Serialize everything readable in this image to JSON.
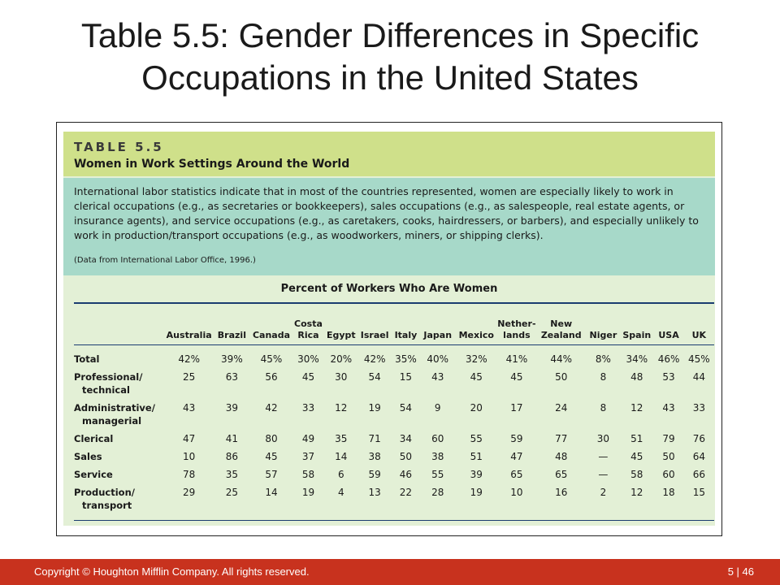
{
  "slide": {
    "title_line1": "Table 5.5: Gender Differences in Specific",
    "title_line2": "Occupations in the United States"
  },
  "table": {
    "label": "TABLE 5.5",
    "heading": "Women in Work Settings Around the World",
    "description": "International labor statistics indicate that in most of the countries represented, women are especially likely to work in clerical occupations (e.g., as secretaries or bookkeepers), sales occupations (e.g., as salespeople, real estate agents, or insurance agents), and service occupations (e.g., as caretakers, cooks, hairdressers, or barbers), and especially unlikely to work in production/transport occupations (e.g., as woodworkers, miners, or shipping clerks).",
    "source": "(Data from International Labor Office, 1996.)",
    "percent_heading": "Percent of Workers Who Are Women",
    "columns": [
      [
        "",
        "Australia"
      ],
      [
        "",
        "Brazil"
      ],
      [
        "",
        "Canada"
      ],
      [
        "Costa",
        "Rica"
      ],
      [
        "",
        "Egypt"
      ],
      [
        "",
        "Israel"
      ],
      [
        "",
        "Italy"
      ],
      [
        "",
        "Japan"
      ],
      [
        "",
        "Mexico"
      ],
      [
        "Nether-",
        "lands"
      ],
      [
        "New",
        "Zealand"
      ],
      [
        "",
        "Niger"
      ],
      [
        "",
        "Spain"
      ],
      [
        "",
        "USA"
      ],
      [
        "",
        "UK"
      ]
    ],
    "rows": [
      {
        "label1": "Total",
        "label2": "",
        "values": [
          "42%",
          "39%",
          "45%",
          "30%",
          "20%",
          "42%",
          "35%",
          "40%",
          "32%",
          "41%",
          "44%",
          "8%",
          "34%",
          "46%",
          "45%"
        ]
      },
      {
        "label1": "Professional/",
        "label2": "technical",
        "values": [
          "25",
          "63",
          "56",
          "45",
          "30",
          "54",
          "15",
          "43",
          "45",
          "45",
          "50",
          "8",
          "48",
          "53",
          "44"
        ]
      },
      {
        "label1": "Administrative/",
        "label2": "managerial",
        "values": [
          "43",
          "39",
          "42",
          "33",
          "12",
          "19",
          "54",
          "9",
          "20",
          "17",
          "24",
          "8",
          "12",
          "43",
          "33"
        ]
      },
      {
        "label1": "Clerical",
        "label2": "",
        "values": [
          "47",
          "41",
          "80",
          "49",
          "35",
          "71",
          "34",
          "60",
          "55",
          "59",
          "77",
          "30",
          "51",
          "79",
          "76"
        ]
      },
      {
        "label1": "Sales",
        "label2": "",
        "values": [
          "10",
          "86",
          "45",
          "37",
          "14",
          "38",
          "50",
          "38",
          "51",
          "47",
          "48",
          "—",
          "45",
          "50",
          "64"
        ]
      },
      {
        "label1": "Service",
        "label2": "",
        "values": [
          "78",
          "35",
          "57",
          "58",
          "6",
          "59",
          "46",
          "55",
          "39",
          "65",
          "65",
          "—",
          "58",
          "60",
          "66"
        ]
      },
      {
        "label1": "Production/",
        "label2": "transport",
        "values": [
          "29",
          "25",
          "14",
          "19",
          "4",
          "13",
          "22",
          "28",
          "19",
          "10",
          "16",
          "2",
          "12",
          "18",
          "15"
        ]
      }
    ]
  },
  "footer": {
    "copyright": "Copyright © Houghton Mifflin Company. All rights reserved.",
    "page": "5 | 46"
  },
  "colors": {
    "footer_bar": "#c8321e",
    "table_header": "#cfe08a",
    "description_box": "#a7d9c9",
    "table_body": "#e3f0d6",
    "rule": "#1a3c70"
  }
}
